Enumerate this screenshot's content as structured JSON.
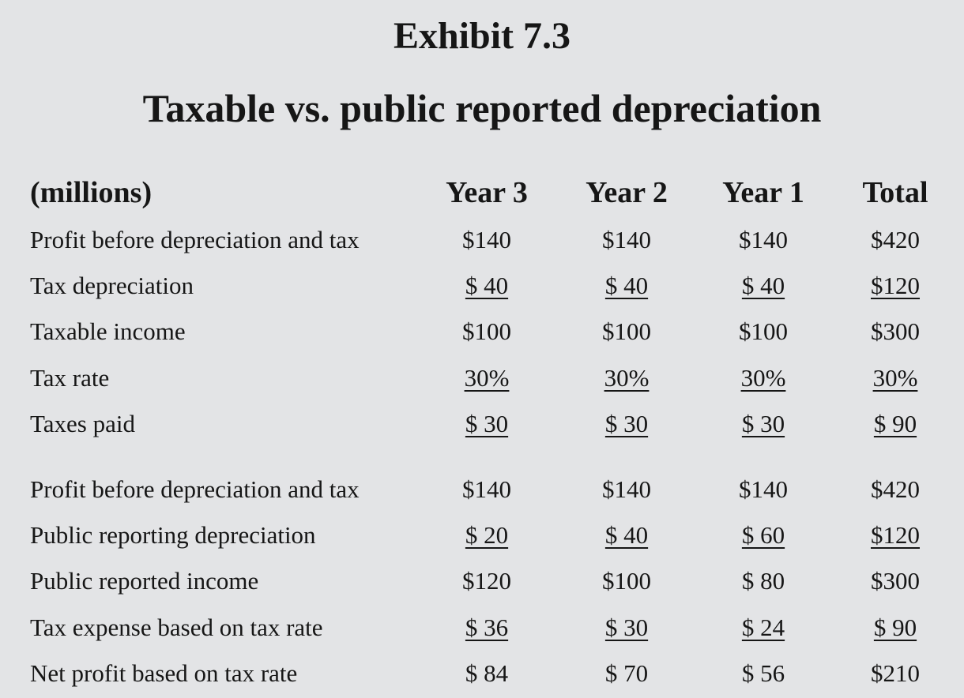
{
  "exhibit": {
    "number": "Exhibit 7.3",
    "title": "Taxable vs. public reported depreciation"
  },
  "table": {
    "header": {
      "label": "(millions)",
      "columns": [
        "Year 3",
        "Year 2",
        "Year 1",
        "Total"
      ]
    },
    "section_tax": [
      {
        "label": "Profit before depreciation and tax",
        "values": [
          "$140",
          "$140",
          "$140",
          "$420"
        ],
        "underline": false
      },
      {
        "label": "Tax depreciation",
        "values": [
          "$ 40",
          "$ 40",
          "$ 40",
          "$120"
        ],
        "underline": true
      },
      {
        "label": "Taxable income",
        "values": [
          "$100",
          "$100",
          "$100",
          "$300"
        ],
        "underline": false
      },
      {
        "label": "Tax rate",
        "values": [
          "30%",
          "30%",
          "30%",
          "30%"
        ],
        "underline": true
      },
      {
        "label": "Taxes paid",
        "values": [
          "$ 30",
          "$ 30",
          "$ 30",
          "$ 90"
        ],
        "underline": true
      }
    ],
    "section_public": [
      {
        "label": "Profit before depreciation and tax",
        "values": [
          "$140",
          "$140",
          "$140",
          "$420"
        ],
        "underline": false
      },
      {
        "label": "Public reporting depreciation",
        "values": [
          "$ 20",
          "$ 40",
          "$ 60",
          "$120"
        ],
        "underline": true
      },
      {
        "label": "Public reported income",
        "values": [
          "$120",
          "$100",
          "$ 80",
          "$300"
        ],
        "underline": false
      },
      {
        "label": "Tax expense based on tax rate",
        "values": [
          "$ 36",
          "$ 30",
          "$ 24",
          "$ 90"
        ],
        "underline": true
      },
      {
        "label": "Net profit based on tax rate",
        "values": [
          "$ 84",
          "$ 70",
          "$ 56",
          "$210"
        ],
        "underline": false
      }
    ]
  }
}
